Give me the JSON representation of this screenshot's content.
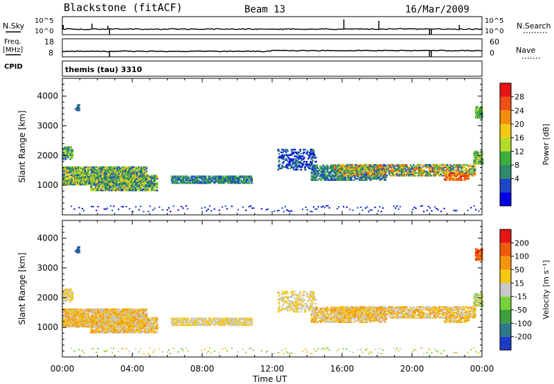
{
  "header": {
    "station": "Blackstone (fitACF)",
    "beam": "Beam 13",
    "date": "16/Mar/2009"
  },
  "small_panels": {
    "nsky_label": "N.Sky",
    "nsearch_label": "N.Search",
    "nsky_ticks": [
      "10^5",
      "10^0"
    ],
    "nsearch_ticks": [
      "10^5",
      "10^0"
    ],
    "freq_label": "Freq.",
    "freq_unit": "[MHz]",
    "freq_ticks": [
      "18",
      "8"
    ],
    "nave_label": "Nave",
    "nave_ticks": [
      "60",
      "0"
    ],
    "cpid_label": "CPID",
    "cpid_value": "themis (tau) 3310"
  },
  "chart_data": [
    {
      "type": "heatmap",
      "name": "power-panel",
      "ylabel": "Slant Range [km]",
      "yticks": [
        1000,
        2000,
        3000,
        4000
      ],
      "ylim": [
        0,
        4600
      ],
      "xlim_hours": [
        0,
        24
      ],
      "colorbar_label": "Power [dB]",
      "colorbar_ticks": [
        "28",
        "24",
        "20",
        "16",
        "12",
        "8",
        "4"
      ],
      "colors": [
        "#0000e6",
        "#1e46c8",
        "#2e8a6a",
        "#3cae3c",
        "#b4dc28",
        "#f5c814",
        "#f58c0a",
        "#f05014",
        "#e61414"
      ]
    },
    {
      "type": "heatmap",
      "name": "velocity-panel",
      "ylabel": "Slant Range [km]",
      "yticks": [
        1000,
        2000,
        3000,
        4000
      ],
      "ylim": [
        0,
        4600
      ],
      "xlim_hours": [
        0,
        24
      ],
      "colorbar_label": "Velocity [m s⁻¹]",
      "colorbar_ticks": [
        "200",
        "100",
        "50",
        "15",
        "-15",
        "-50",
        "-100",
        "-200"
      ],
      "colors": [
        "#1e3cc8",
        "#2e7a8a",
        "#3ca03c",
        "#78d23c",
        "#c8c8c8",
        "#f5c814",
        "#f5960a",
        "#f05a0a",
        "#e61414"
      ]
    }
  ],
  "xaxis": {
    "ticks": [
      "00:00",
      "04:00",
      "08:00",
      "12:00",
      "16:00",
      "20:00",
      "00:00"
    ],
    "label": "Time UT"
  }
}
